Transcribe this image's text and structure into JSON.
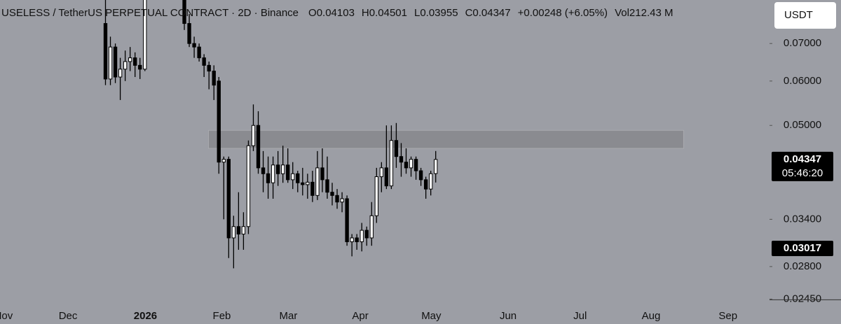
{
  "chart_data": {
    "type": "candlestick",
    "title": "USELESS / TetherUS PERPETUAL CONTRACT · 2D · Binance",
    "ohlc_text": [
      "O0.04103",
      "H0.04501",
      "L0.03955",
      "C0.04347",
      "+0.00248 (+6.05%)",
      "Vol212.43 M"
    ],
    "currency": "USDT",
    "log_scale": true,
    "background": "#9c9ea5",
    "up_color": "#ffffff",
    "down_color": "#000000",
    "x": [
      0,
      1,
      2,
      3,
      4,
      5,
      6,
      7,
      8,
      16,
      17,
      18,
      19,
      20,
      21,
      22,
      23,
      24,
      25,
      26,
      27,
      28,
      29,
      30,
      31,
      32,
      33,
      34,
      35,
      36,
      37,
      38,
      39,
      40,
      41,
      42,
      43,
      44,
      45,
      46,
      47,
      48,
      49,
      50,
      51,
      52,
      53,
      54,
      55,
      56,
      57,
      58,
      59,
      60,
      61,
      62,
      63,
      64,
      65,
      66,
      67
    ],
    "open": [
      0.076,
      0.0605,
      0.069,
      0.061,
      0.063,
      0.065,
      0.066,
      0.064,
      0.063,
      0.087,
      0.076,
      0.07,
      0.069,
      0.066,
      0.064,
      0.0625,
      0.06,
      0.043,
      0.0435,
      0.0315,
      0.033,
      0.032,
      0.033,
      0.046,
      0.05,
      0.042,
      0.041,
      0.0395,
      0.0425,
      0.041,
      0.0425,
      0.04,
      0.041,
      0.0395,
      0.0392,
      0.0396,
      0.0375,
      0.042,
      0.04,
      0.038,
      0.0375,
      0.0365,
      0.037,
      0.031,
      0.0315,
      0.031,
      0.0325,
      0.0315,
      0.0345,
      0.0405,
      0.042,
      0.039,
      0.047,
      0.044,
      0.043,
      0.042,
      0.0435,
      0.0415,
      0.04,
      0.0385,
      0.04103
    ],
    "high": [
      0.087,
      0.072,
      0.07,
      0.066,
      0.068,
      0.069,
      0.0675,
      0.066,
      0.088,
      0.088,
      0.079,
      0.072,
      0.07,
      0.067,
      0.065,
      0.064,
      0.061,
      0.044,
      0.044,
      0.0345,
      0.038,
      0.035,
      0.047,
      0.0545,
      0.053,
      0.045,
      0.044,
      0.044,
      0.045,
      0.046,
      0.0455,
      0.043,
      0.0415,
      0.042,
      0.041,
      0.0415,
      0.045,
      0.0455,
      0.044,
      0.0395,
      0.0385,
      0.038,
      0.0375,
      0.032,
      0.032,
      0.0335,
      0.033,
      0.0365,
      0.042,
      0.043,
      0.05,
      0.05,
      0.0505,
      0.0465,
      0.0455,
      0.044,
      0.044,
      0.042,
      0.0405,
      0.0415,
      0.04501
    ],
    "low": [
      0.059,
      0.059,
      0.0595,
      0.0555,
      0.06,
      0.0625,
      0.061,
      0.0605,
      0.0625,
      0.074,
      0.069,
      0.066,
      0.065,
      0.061,
      0.058,
      0.0555,
      0.041,
      0.034,
      0.029,
      0.0278,
      0.03,
      0.03,
      0.032,
      0.045,
      0.041,
      0.038,
      0.037,
      0.037,
      0.039,
      0.0395,
      0.0395,
      0.0385,
      0.038,
      0.0375,
      0.037,
      0.0365,
      0.0368,
      0.038,
      0.037,
      0.036,
      0.0355,
      0.035,
      0.0305,
      0.0292,
      0.03,
      0.0298,
      0.0305,
      0.0305,
      0.0335,
      0.038,
      0.0385,
      0.0385,
      0.042,
      0.0405,
      0.041,
      0.0405,
      0.04,
      0.039,
      0.037,
      0.0375,
      0.03955
    ],
    "close": [
      0.0605,
      0.069,
      0.061,
      0.063,
      0.065,
      0.066,
      0.064,
      0.063,
      0.087,
      0.076,
      0.07,
      0.069,
      0.066,
      0.064,
      0.0625,
      0.059,
      0.043,
      0.0435,
      0.0315,
      0.033,
      0.032,
      0.033,
      0.046,
      0.05,
      0.042,
      0.041,
      0.0395,
      0.0425,
      0.041,
      0.0425,
      0.04,
      0.041,
      0.0395,
      0.0392,
      0.0396,
      0.0375,
      0.042,
      0.04,
      0.038,
      0.0375,
      0.0365,
      0.037,
      0.031,
      0.0315,
      0.031,
      0.0325,
      0.0315,
      0.0345,
      0.0405,
      0.042,
      0.039,
      0.047,
      0.044,
      0.043,
      0.042,
      0.0435,
      0.0415,
      0.04,
      0.0385,
      0.041,
      0.04347
    ],
    "xlim": [
      -21.4,
      134.3
    ],
    "ylim": [
      0.0239,
      0.0837
    ],
    "xticks": [
      {
        "value": -20.7,
        "label": "Nov"
      },
      {
        "value": -7.6,
        "label": "Dec"
      },
      {
        "value": 8.1,
        "label": "2026"
      },
      {
        "value": 23.6,
        "label": "Feb"
      },
      {
        "value": 37.1,
        "label": "Mar"
      },
      {
        "value": 51.7,
        "label": "Apr"
      },
      {
        "value": 66.1,
        "label": "May"
      },
      {
        "value": 81.7,
        "label": "Jun"
      },
      {
        "value": 96.3,
        "label": "Jul"
      },
      {
        "value": 110.7,
        "label": "Aug"
      },
      {
        "value": 126.3,
        "label": "Sep"
      }
    ],
    "yticks": [
      {
        "value": 0.07,
        "label": "0.07000"
      },
      {
        "value": 0.06,
        "label": "0.06000"
      },
      {
        "value": 0.05,
        "label": "0.05000"
      },
      {
        "value": 0.034,
        "label": "0.03400"
      },
      {
        "value": 0.028,
        "label": "0.02800"
      },
      {
        "value": 0.0245,
        "label": "0.02450"
      }
    ],
    "zone": {
      "x": [
        20.9,
        117.3
      ],
      "y": [
        0.0455,
        0.049
      ],
      "color": "#8a8b90"
    },
    "price_labels": [
      {
        "value": 0.04347,
        "label": "0.04347",
        "countdown": "05:46:20"
      },
      {
        "value": 0.03017,
        "label": "0.03017"
      }
    ]
  }
}
